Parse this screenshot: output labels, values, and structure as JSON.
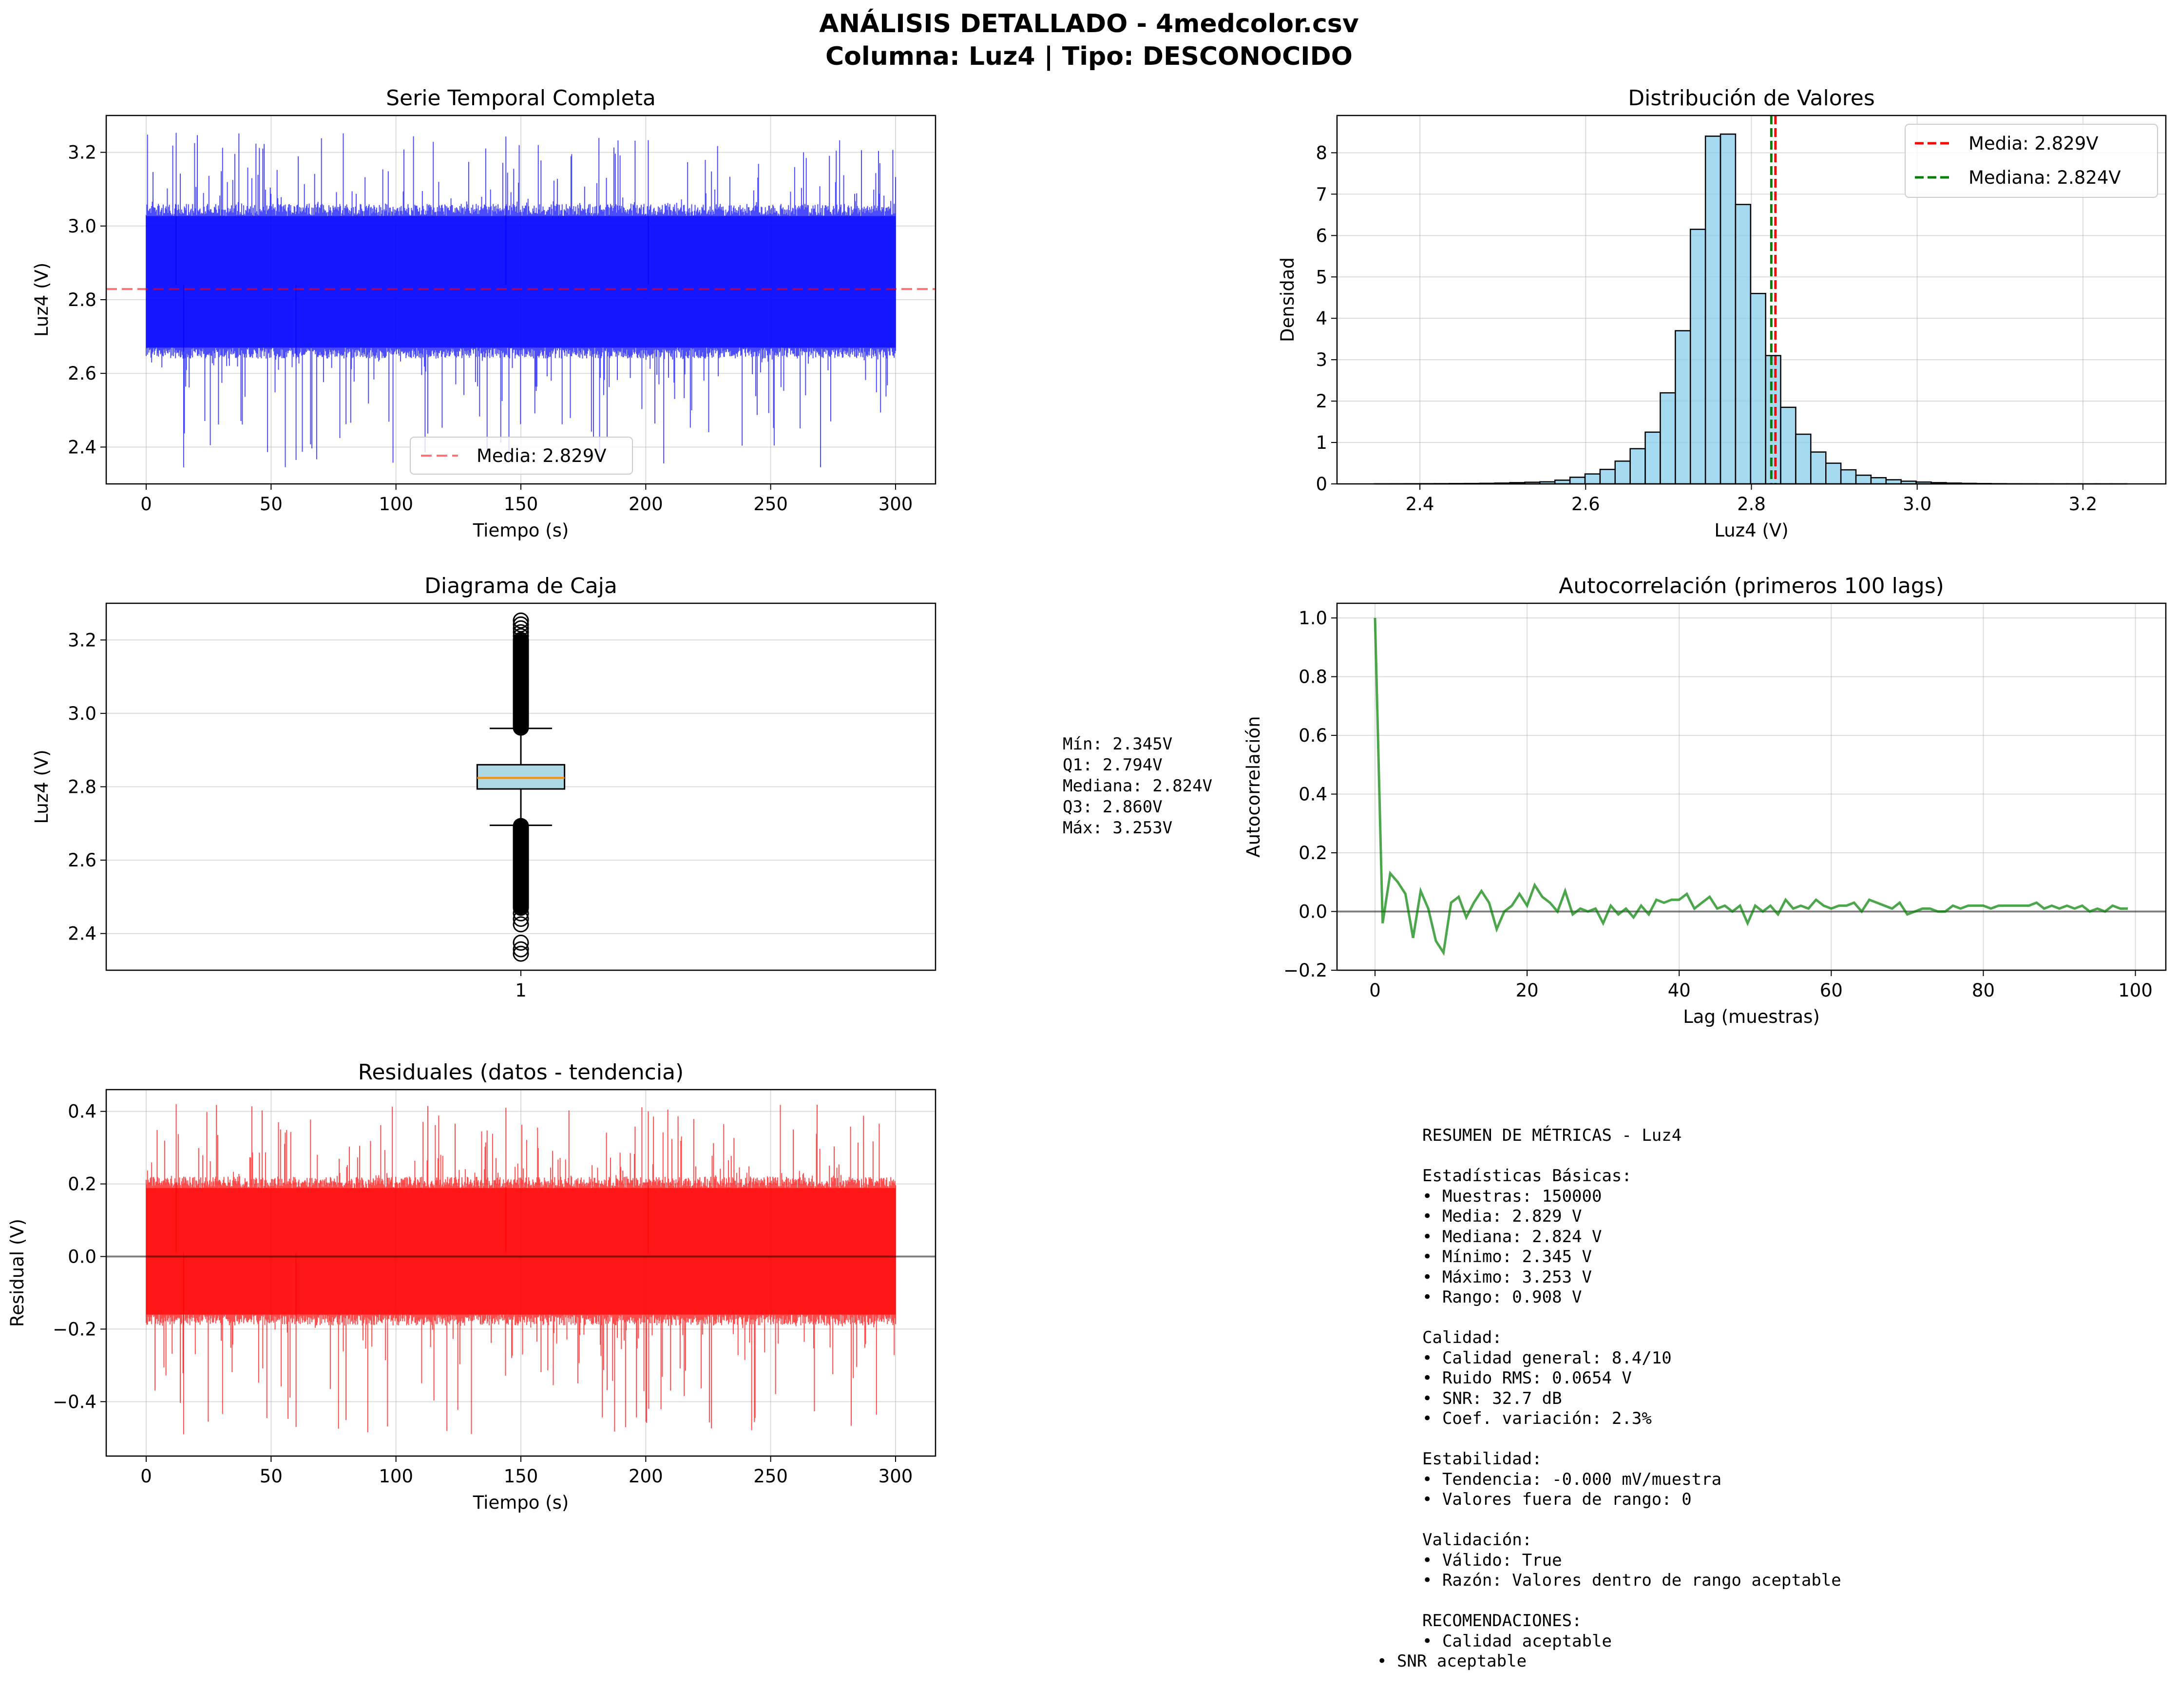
{
  "figure": {
    "title_line1": "ANÁLISIS DETALLADO - 4medcolor.csv",
    "title_line2": "Columna: Luz4 | Tipo: DESCONOCIDO"
  },
  "chart_data": [
    {
      "id": "time_series",
      "type": "line",
      "title": "Serie Temporal Completa",
      "xlabel": "Tiempo (s)",
      "ylabel": "Luz4 (V)",
      "xlim": [
        -16,
        316
      ],
      "ylim": [
        2.3,
        3.3
      ],
      "xticks": [
        0,
        50,
        100,
        150,
        200,
        250,
        300
      ],
      "yticks": [
        2.4,
        2.6,
        2.8,
        3.0,
        3.2
      ],
      "grid": true,
      "legend": "bottom-center",
      "series": [
        {
          "name": "Luz4",
          "color": "#0000ff",
          "samples": 150000,
          "x_range": [
            0,
            300
          ],
          "typical_band": [
            2.64,
            3.06
          ],
          "min": 2.345,
          "max": 3.253
        }
      ],
      "reference_lines": [
        {
          "label": "Media: 2.829V",
          "value": 2.829,
          "color": "#ff0000",
          "style": "dashed"
        }
      ]
    },
    {
      "id": "histogram",
      "type": "bar",
      "title": "Distribución de Valores",
      "xlabel": "Luz4 (V)",
      "ylabel": "Densidad",
      "xlim": [
        2.3,
        3.3
      ],
      "ylim": [
        0,
        8.9
      ],
      "xticks": [
        2.4,
        2.6,
        2.8,
        3.0,
        3.2
      ],
      "yticks": [
        0,
        1,
        2,
        3,
        4,
        5,
        6,
        7,
        8
      ],
      "grid": true,
      "legend": "top-right",
      "bin_start": 2.345,
      "bin_width": 0.01816,
      "values": [
        0.002,
        0.003,
        0.004,
        0.005,
        0.006,
        0.008,
        0.01,
        0.014,
        0.02,
        0.03,
        0.04,
        0.05,
        0.09,
        0.16,
        0.24,
        0.35,
        0.55,
        0.85,
        1.25,
        2.2,
        3.7,
        6.15,
        8.4,
        8.45,
        6.75,
        4.6,
        3.1,
        1.85,
        1.2,
        0.77,
        0.5,
        0.34,
        0.21,
        0.15,
        0.1,
        0.065,
        0.045,
        0.03,
        0.02,
        0.013,
        0.008,
        0.005,
        0.003,
        0.002,
        0.001,
        0.001,
        0.001,
        0.001,
        0.001,
        0.001
      ],
      "fill": "#87ceeb",
      "reference_lines": [
        {
          "label": "Media: 2.829V",
          "value": 2.829,
          "color": "#ff0000",
          "style": "dashed"
        },
        {
          "label": "Mediana: 2.824V",
          "value": 2.824,
          "color": "#008000",
          "style": "dashed"
        }
      ]
    },
    {
      "id": "boxplot",
      "type": "box",
      "title": "Diagrama de Caja",
      "ylabel": "Luz4 (V)",
      "xticks": [
        "1"
      ],
      "ylim": [
        2.3,
        3.3
      ],
      "yticks": [
        2.4,
        2.6,
        2.8,
        3.0,
        3.2
      ],
      "grid": true,
      "min": 2.345,
      "q1": 2.794,
      "median": 2.824,
      "q3": 2.86,
      "max": 3.253,
      "whisker_low": 2.695,
      "whisker_high": 2.959,
      "outliers_low_range": [
        2.345,
        2.695
      ],
      "outliers_high_range": [
        2.959,
        3.253
      ],
      "fill": "#add8e6",
      "median_color": "#ff8c00"
    },
    {
      "id": "autocorrelation",
      "type": "line",
      "title": "Autocorrelación (primeros 100 lags)",
      "xlabel": "Lag (muestras)",
      "ylabel": "Autocorrelación",
      "xlim": [
        -5,
        104
      ],
      "ylim": [
        -0.2,
        1.05
      ],
      "xticks": [
        0,
        20,
        40,
        60,
        80,
        100
      ],
      "yticks": [
        -0.2,
        0.0,
        0.2,
        0.4,
        0.6,
        0.8,
        1.0
      ],
      "grid": true,
      "color": "#008000",
      "values": [
        1.0,
        -0.04,
        0.13,
        0.1,
        0.06,
        -0.09,
        0.07,
        0.01,
        -0.1,
        -0.14,
        0.03,
        0.05,
        -0.02,
        0.03,
        0.07,
        0.03,
        -0.06,
        0.0,
        0.02,
        0.06,
        0.02,
        0.09,
        0.05,
        0.03,
        0.0,
        0.07,
        -0.01,
        0.01,
        0.0,
        0.01,
        -0.04,
        0.02,
        -0.01,
        0.01,
        -0.02,
        0.02,
        -0.01,
        0.04,
        0.03,
        0.04,
        0.04,
        0.06,
        0.01,
        0.03,
        0.05,
        0.01,
        0.02,
        0.0,
        0.02,
        -0.04,
        0.02,
        0.0,
        0.02,
        -0.01,
        0.04,
        0.01,
        0.02,
        0.01,
        0.04,
        0.02,
        0.01,
        0.02,
        0.02,
        0.03,
        0.0,
        0.04,
        0.03,
        0.02,
        0.01,
        0.03,
        -0.01,
        0.0,
        0.01,
        0.01,
        0.0,
        0.0,
        0.02,
        0.01,
        0.02,
        0.02,
        0.02,
        0.01,
        0.02,
        0.02,
        0.02,
        0.02,
        0.02,
        0.03,
        0.01,
        0.02,
        0.01,
        0.02,
        0.01,
        0.02,
        0.0,
        0.01,
        0.0,
        0.02,
        0.01,
        0.01
      ],
      "reference_lines": [
        {
          "value": 0,
          "color": "#000000"
        }
      ]
    },
    {
      "id": "residuals",
      "type": "line",
      "title": "Residuales (datos - tendencia)",
      "xlabel": "Tiempo (s)",
      "ylabel": "Residual (V)",
      "xlim": [
        -16,
        316
      ],
      "ylim": [
        -0.55,
        0.46
      ],
      "xticks": [
        0,
        50,
        100,
        150,
        200,
        250,
        300
      ],
      "yticks": [
        -0.4,
        -0.2,
        0.0,
        0.2,
        0.4
      ],
      "grid": true,
      "series": [
        {
          "name": "Residual",
          "color": "#ff0000",
          "samples": 150000,
          "x_range": [
            0,
            300
          ],
          "typical_band": [
            -0.19,
            0.22
          ],
          "min": -0.49,
          "max": 0.42
        }
      ],
      "reference_lines": [
        {
          "value": 0,
          "color": "#000000"
        }
      ]
    }
  ],
  "box_stats_text": [
    "Mín: 2.345V",
    "Q1: 2.794V",
    "Mediana: 2.824V",
    "Q3: 2.860V",
    "Máx: 3.253V"
  ],
  "summary_text": [
    "RESUMEN DE MÉTRICAS - Luz4",
    "",
    "Estadísticas Básicas:",
    "• Muestras: 150000",
    "• Media: 2.829 V",
    "• Mediana: 2.824 V",
    "• Mínimo: 2.345 V",
    "• Máximo: 3.253 V",
    "• Rango: 0.908 V",
    "",
    "Calidad:",
    "• Calidad general: 8.4/10",
    "• Ruido RMS: 0.0654 V",
    "• SNR: 32.7 dB",
    "• Coef. variación: 2.3%",
    "",
    "Estabilidad:",
    "• Tendencia: -0.000 mV/muestra",
    "• Valores fuera de rango: 0",
    "",
    "Validación:",
    "• Válido: True",
    "• Razón: Valores dentro de rango aceptable",
    "",
    "RECOMENDACIONES:",
    "• Calidad aceptable"
  ],
  "summary_last_line": "• SNR aceptable"
}
